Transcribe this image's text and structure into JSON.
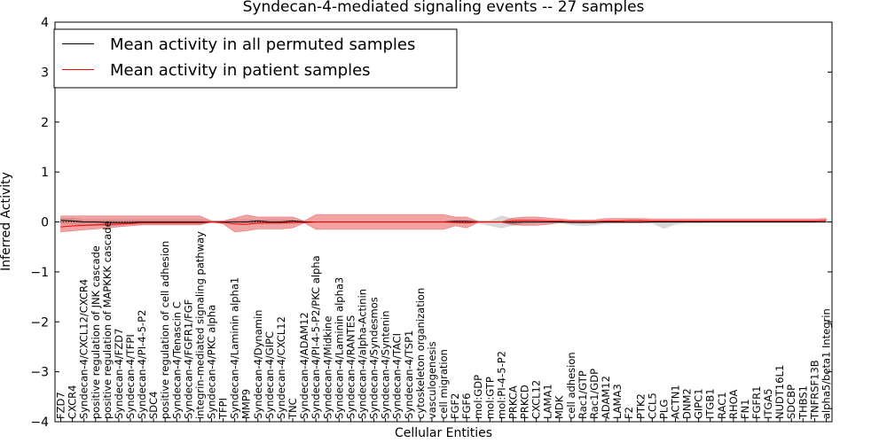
{
  "chart_data": {
    "type": "line",
    "title": "Syndecan-4-mediated signaling events -- 27 samples",
    "xlabel": "Cellular Entities",
    "ylabel": "Inferred Activity",
    "ylim": [
      -4,
      4
    ],
    "yticks": [
      "4",
      "3",
      "2",
      "1",
      "0",
      "−1",
      "−2",
      "−3",
      "−4"
    ],
    "yticks_values": [
      4,
      3,
      2,
      1,
      0,
      -1,
      -2,
      -3,
      -4
    ],
    "grid": false,
    "legend_position": "top-left",
    "categories": [
      "FZD7",
      "CXCR4",
      "Syndecan-4/CXCL12/CXCR4",
      "positive regulation of JNK cascade",
      "positive regulation of MAPKKK cascade",
      "Syndecan-4/FZD7",
      "Syndecan-4/TFPI",
      "Syndecan-4/PI-4-5-P2",
      "SDC4",
      "positive regulation of cell adhesion",
      "Syndecan-4/Tenascin C",
      "Syndecan-4/FGFR1/FGF",
      "integrin-mediated signaling pathway",
      "Syndecan-4/PKC alpha",
      "TFPI",
      "Syndecan-4/Laminin alpha1",
      "MMP9",
      "Syndecan-4/Dynamin",
      "Syndecan-4/GIPC",
      "Syndecan-4/CXCL12",
      "TNC",
      "Syndecan-4/ADAM12",
      "Syndecan-4/PI-4-5-P2/PKC alpha",
      "Syndecan-4/Midkine",
      "Syndecan-4/Laminin alpha3",
      "Syndecan-4/RANTES",
      "Syndecan-4/alpha-Actinin",
      "Syndecan-4/Syndesmos",
      "Syndecan-4/Syntenin",
      "Syndecan-4/TACI",
      "Syndecan-4/TSP1",
      "cytoskeleton organization",
      "vasculogenesis",
      "cell migration",
      "FGF2",
      "FGF6",
      "mol:GDP",
      "mol:GTP",
      "mol:PI-4-5-P2",
      "PRKCA",
      "PRKCD",
      "CXCL12",
      "LAMA1",
      "MDK",
      "cell adhesion",
      "Rac1/GTP",
      "Rac1/GDP",
      "ADAM12",
      "LAMA3",
      "F2",
      "PTK2",
      "CCL5",
      "PLG",
      "ACTN1",
      "DNM2",
      "GIPC1",
      "ITGB1",
      "RAC1",
      "RHOA",
      "FN1",
      "FGFR1",
      "ITGA5",
      "NUDT16L1",
      "SDCBP",
      "THBS1",
      "TNFRSF13B",
      "alpha5/beta1 Integrin"
    ],
    "series": [
      {
        "name": "Mean activity in all permuted samples",
        "color": "#000000",
        "values": [
          0.03,
          0.02,
          0.0,
          0.0,
          -0.01,
          -0.01,
          -0.01,
          0.0,
          0.0,
          0.0,
          0.0,
          0.0,
          0.0,
          0.0,
          0.0,
          0.0,
          0.0,
          0.02,
          0.0,
          0.0,
          0.02,
          0.0,
          0.0,
          0.0,
          0.0,
          0.0,
          0.0,
          0.0,
          0.0,
          0.0,
          0.0,
          0.0,
          0.0,
          0.0,
          0.01,
          0.01,
          0.0,
          0.0,
          0.0,
          -0.01,
          0.0,
          0.0,
          0.0,
          0.0,
          -0.01,
          -0.01,
          -0.01,
          0.0,
          0.0,
          0.0,
          0.0,
          0.0,
          0.0,
          0.0,
          0.0,
          0.0,
          0.0,
          0.0,
          0.0,
          0.0,
          0.0,
          0.0,
          0.0,
          0.0,
          0.0,
          0.0,
          0.0
        ],
        "lower": [
          -0.05,
          -0.05,
          -0.08,
          -0.08,
          -0.08,
          -0.08,
          -0.06,
          -0.05,
          -0.05,
          -0.05,
          -0.05,
          -0.05,
          -0.05,
          -0.03,
          -0.03,
          -0.05,
          -0.03,
          -0.05,
          -0.05,
          -0.05,
          -0.03,
          -0.02,
          -0.02,
          -0.02,
          -0.02,
          -0.02,
          -0.02,
          -0.02,
          -0.02,
          -0.02,
          -0.02,
          -0.02,
          -0.02,
          -0.02,
          -0.03,
          -0.03,
          -0.03,
          -0.08,
          -0.13,
          -0.07,
          -0.05,
          -0.03,
          -0.03,
          -0.02,
          -0.06,
          -0.08,
          -0.07,
          -0.03,
          -0.03,
          -0.03,
          -0.03,
          -0.03,
          -0.14,
          -0.05,
          -0.03,
          -0.03,
          -0.02,
          -0.02,
          -0.02,
          -0.02,
          -0.02,
          -0.02,
          -0.02,
          -0.02,
          -0.02,
          -0.02,
          -0.02
        ],
        "upper": [
          0.08,
          0.08,
          0.05,
          0.05,
          0.05,
          0.05,
          0.05,
          0.05,
          0.05,
          0.05,
          0.05,
          0.05,
          0.05,
          0.03,
          0.03,
          0.05,
          0.05,
          0.05,
          0.05,
          0.05,
          0.05,
          0.02,
          0.02,
          0.02,
          0.02,
          0.02,
          0.02,
          0.02,
          0.02,
          0.02,
          0.02,
          0.02,
          0.02,
          0.02,
          0.04,
          0.04,
          0.03,
          0.03,
          0.13,
          0.07,
          0.05,
          0.03,
          0.03,
          0.02,
          0.02,
          0.02,
          0.02,
          0.03,
          0.03,
          0.03,
          0.03,
          0.03,
          0.03,
          0.02,
          0.02,
          0.02,
          0.02,
          0.02,
          0.02,
          0.02,
          0.02,
          0.02,
          0.02,
          0.02,
          0.02,
          0.02,
          0.02
        ]
      },
      {
        "name": "Mean activity in patient samples",
        "color": "#ff0000",
        "values": [
          -0.1,
          -0.08,
          -0.07,
          -0.06,
          -0.05,
          -0.04,
          -0.03,
          -0.02,
          -0.02,
          -0.02,
          -0.02,
          -0.02,
          -0.02,
          0.0,
          -0.01,
          -0.04,
          -0.05,
          -0.02,
          -0.02,
          -0.02,
          -0.01,
          -0.01,
          0.0,
          0.0,
          0.0,
          0.0,
          0.0,
          0.0,
          0.0,
          0.0,
          0.0,
          0.0,
          0.0,
          0.0,
          -0.01,
          -0.02,
          0.0,
          0.0,
          0.0,
          0.02,
          0.03,
          0.03,
          0.02,
          0.02,
          0.01,
          0.01,
          0.01,
          0.02,
          0.02,
          0.03,
          0.03,
          0.02,
          0.02,
          0.02,
          0.02,
          0.02,
          0.02,
          0.02,
          0.02,
          0.02,
          0.02,
          0.02,
          0.02,
          0.02,
          0.02,
          0.02,
          0.03
        ],
        "lower": [
          -0.2,
          -0.18,
          -0.16,
          -0.14,
          -0.12,
          -0.1,
          -0.08,
          -0.06,
          -0.06,
          -0.06,
          -0.06,
          -0.06,
          -0.06,
          0.0,
          -0.04,
          -0.2,
          -0.18,
          -0.14,
          -0.14,
          -0.14,
          -0.12,
          -0.02,
          -0.15,
          -0.15,
          -0.15,
          -0.15,
          -0.15,
          -0.15,
          -0.15,
          -0.15,
          -0.15,
          -0.15,
          -0.15,
          -0.15,
          -0.08,
          -0.12,
          -0.01,
          -0.01,
          -0.01,
          -0.06,
          -0.07,
          -0.07,
          -0.05,
          -0.02,
          0.0,
          0.0,
          0.0,
          -0.02,
          -0.02,
          -0.02,
          -0.02,
          -0.01,
          -0.01,
          -0.01,
          -0.01,
          -0.01,
          -0.01,
          -0.01,
          -0.01,
          -0.01,
          -0.01,
          -0.01,
          -0.01,
          -0.01,
          -0.01,
          -0.01,
          0.0
        ],
        "upper": [
          0.12,
          0.12,
          0.12,
          0.12,
          0.12,
          0.12,
          0.12,
          0.12,
          0.12,
          0.12,
          0.12,
          0.12,
          0.12,
          0.02,
          0.02,
          0.08,
          0.14,
          0.1,
          0.1,
          0.1,
          0.1,
          0.02,
          0.15,
          0.15,
          0.15,
          0.15,
          0.15,
          0.15,
          0.15,
          0.15,
          0.15,
          0.15,
          0.15,
          0.15,
          0.1,
          0.1,
          0.01,
          0.01,
          0.01,
          0.08,
          0.1,
          0.1,
          0.08,
          0.06,
          0.04,
          0.04,
          0.04,
          0.07,
          0.07,
          0.07,
          0.07,
          0.06,
          0.06,
          0.06,
          0.06,
          0.06,
          0.06,
          0.06,
          0.06,
          0.06,
          0.06,
          0.06,
          0.06,
          0.06,
          0.06,
          0.06,
          0.07
        ]
      }
    ],
    "band_colors": {
      "patient": "#e03030",
      "permuted": "#b8b8b8"
    }
  }
}
